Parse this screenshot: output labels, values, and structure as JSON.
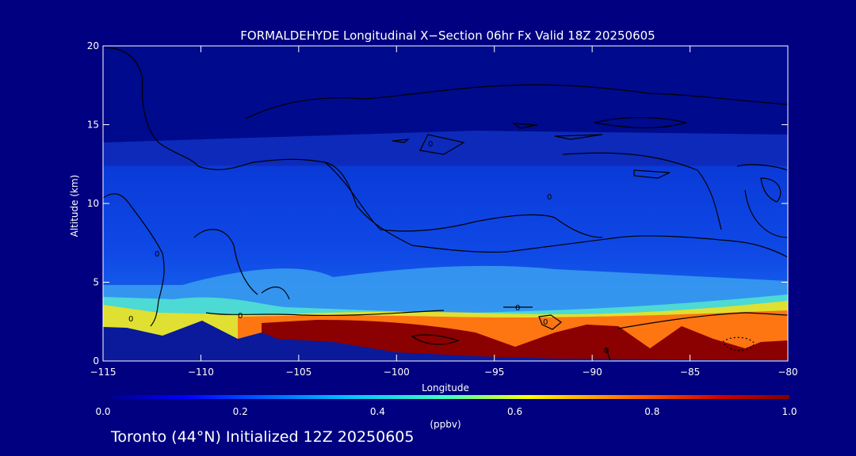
{
  "chart_data": {
    "type": "heatmap",
    "title": "FORMALDEHYDE Longitudinal X−Section 06hr  Fx Valid 18Z 20250605",
    "xlabel": "Longitude",
    "ylabel": "Altitude (km)",
    "xlim": [
      -115,
      -80
    ],
    "ylim": [
      0,
      20
    ],
    "x_ticks": [
      "−115",
      "−110",
      "−105",
      "−100",
      "−95",
      "−90",
      "−85",
      "−80"
    ],
    "x_tick_values": [
      -115,
      -110,
      -105,
      -100,
      -95,
      -90,
      -85,
      -80
    ],
    "y_ticks": [
      "0",
      "5",
      "10",
      "15",
      "20"
    ],
    "y_tick_values": [
      0,
      5,
      10,
      15,
      20
    ],
    "colorbar": {
      "label": "(ppbv)",
      "range": [
        0.0,
        1.0
      ],
      "ticks": [
        "0.0",
        "0.2",
        "0.4",
        "0.6",
        "0.8",
        "1.0"
      ],
      "tick_values": [
        0.0,
        0.2,
        0.4,
        0.6,
        0.8,
        1.0
      ]
    },
    "contour_labels": [
      "0",
      "0",
      "0",
      "0",
      "0",
      "0",
      "0",
      "0"
    ],
    "colors": {
      "background": "#000080",
      "upper_air": "#000a8c",
      "mid_air": "#0a32d2",
      "enhanced_low": "#3cb4f0",
      "boundary_layer_max": "#8b0000"
    },
    "grid": false
  },
  "footer": "Toronto (44°N) Initialized 12Z 20250605"
}
